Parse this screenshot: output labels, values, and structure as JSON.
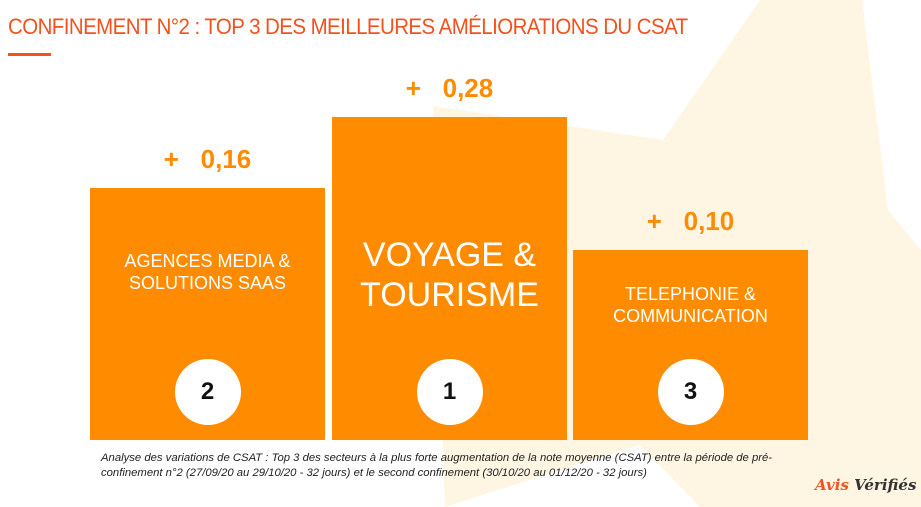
{
  "title": "CONFINEMENT N°2 : TOP 3 DES MEILLEURES AMÉLIORATIONS DU CSAT",
  "colors": {
    "accent": "#f4511e",
    "bar": "#ff8c00",
    "background_shape": "#fff5e3"
  },
  "chart_data": {
    "type": "bar",
    "categories": [
      "AGENCES MEDIA & SOLUTIONS SAAS",
      "VOYAGE & TOURISME",
      "TELEPHONIE & COMMUNICATION"
    ],
    "values": [
      0.16,
      0.28,
      0.1
    ],
    "value_labels": [
      "+   0,16",
      "+   0,28",
      "+   0,10"
    ],
    "ranks": [
      "2",
      "1",
      "3"
    ],
    "category_lines": [
      [
        "AGENCES MEDIA &",
        "SOLUTIONS SAAS"
      ],
      [
        "VOYAGE &",
        "TOURISME"
      ],
      [
        "TELEPHONIE &",
        "COMMUNICATION"
      ]
    ]
  },
  "footnote": "Analyse des variations de CSAT : Top 3 des secteurs à la plus forte augmentation de la note moyenne (CSAT) entre la période de pré-confinement n°2 (27/09/20 au 29/10/20 - 32 jours) et le second confinement (30/10/20 au 01/12/20 - 32 jours)",
  "logo": {
    "part1": "Avis",
    "part2": "Vérifiés"
  }
}
